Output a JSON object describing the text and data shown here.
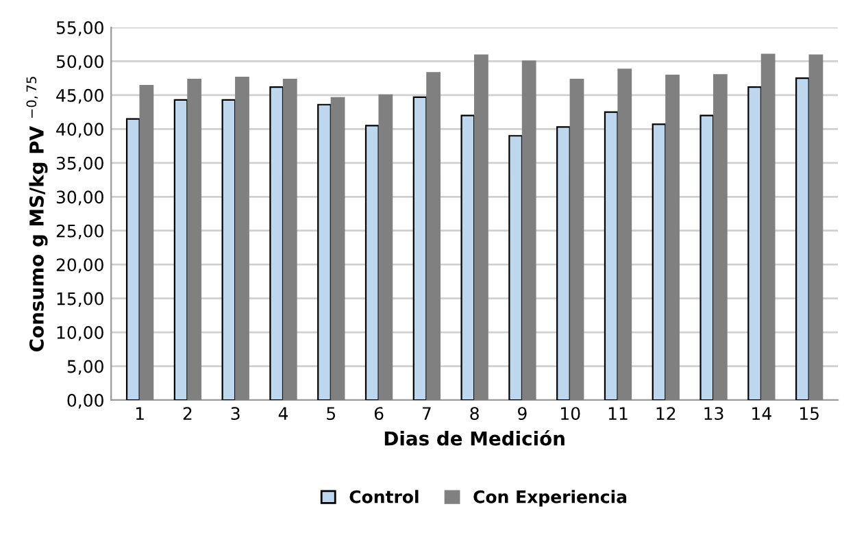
{
  "chart_data": {
    "type": "bar",
    "xlabel": "Dias de Medición",
    "ylabel": "Consumo g MS/kg PV $^{−0,75}$",
    "categories": [
      "1",
      "2",
      "3",
      "4",
      "5",
      "6",
      "7",
      "8",
      "9",
      "10",
      "11",
      "12",
      "13",
      "14",
      "15"
    ],
    "series": [
      {
        "name": "Control",
        "color": "#bdd7ee",
        "values": [
          41.5,
          44.3,
          44.3,
          46.2,
          43.6,
          40.5,
          44.7,
          42.0,
          39.0,
          40.3,
          42.5,
          40.7,
          42.0,
          46.2,
          47.5
        ]
      },
      {
        "name": "Con Experiencia",
        "color": "#808080",
        "values": [
          46.4,
          47.3,
          47.6,
          47.3,
          44.6,
          45.0,
          48.3,
          50.9,
          50.0,
          47.3,
          48.8,
          47.9,
          48.0,
          51.0,
          50.9
        ]
      }
    ],
    "ylim": [
      0,
      55
    ],
    "yticks": [
      {
        "value": 0,
        "label": "0,00"
      },
      {
        "value": 5,
        "label": "5,00"
      },
      {
        "value": 10,
        "label": "10,00"
      },
      {
        "value": 15,
        "label": "15,00"
      },
      {
        "value": 20,
        "label": "20,00"
      },
      {
        "value": 25,
        "label": "25,00"
      },
      {
        "value": 30,
        "label": "30,00"
      },
      {
        "value": 35,
        "label": "35,00"
      },
      {
        "value": 40,
        "label": "40,00"
      },
      {
        "value": 45,
        "label": "45,00"
      },
      {
        "value": 50,
        "label": "50,00"
      },
      {
        "value": 55,
        "label": "55,00"
      }
    ],
    "grid": "y",
    "legend": "bottom"
  }
}
